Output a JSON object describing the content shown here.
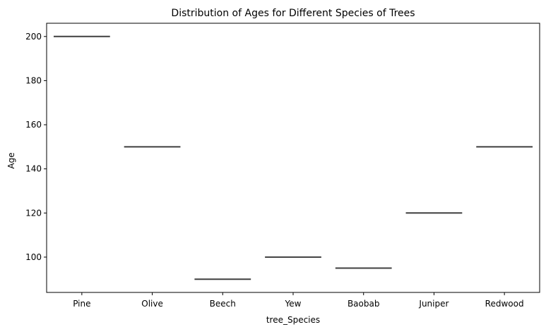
{
  "chart_data": {
    "type": "box",
    "title": "Distribution of Ages for Different Species of Trees",
    "xlabel": "tree_Species",
    "ylabel": "Age",
    "categories": [
      "Pine",
      "Olive",
      "Beech",
      "Yew",
      "Baobab",
      "Juniper",
      "Redwood"
    ],
    "values": [
      200,
      150,
      90,
      100,
      95,
      120,
      150
    ],
    "ylim": [
      84,
      206
    ],
    "yticks": [
      100,
      120,
      140,
      160,
      180,
      200
    ],
    "grid": false,
    "line_color": "#3f3f3f"
  }
}
